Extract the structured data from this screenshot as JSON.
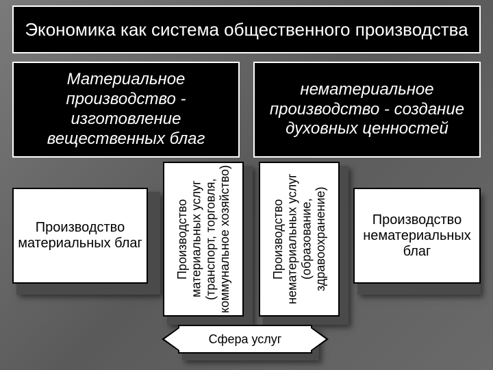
{
  "type": "flowchart",
  "background": {
    "gradient": [
      "#7a7a7a",
      "#5a5a5a",
      "#6a6a6a"
    ]
  },
  "title": {
    "text": "Экономика как система общественного производства",
    "fontsize": 26,
    "bg": "#000000",
    "fg": "#ffffff",
    "border": "#ffffff"
  },
  "branches": {
    "left": {
      "header": "Материальное производство - изготовление вещественных благ",
      "header_style": {
        "fontsize": 24,
        "italic": true,
        "bg": "#000000",
        "fg": "#ffffff"
      },
      "leaf": "Производство материальных благ",
      "vertical": "Производство материальных услуг (транспорт, торговля, коммунальное хозяйство)"
    },
    "right": {
      "header": "нематериальное производство - создание духовных ценностей",
      "header_style": {
        "fontsize": 24,
        "italic": true,
        "bg": "#000000",
        "fg": "#ffffff"
      },
      "leaf": "Производство нематериальных благ",
      "vertical": "Производство нематериальных услуг (образование, здравоохранение)"
    }
  },
  "bottom": {
    "text": "Сфера услуг",
    "fontsize": 18
  },
  "box_style": {
    "small_bg": "#ffffff",
    "small_fg": "#000000",
    "small_border": "#000000",
    "shadow_bg": "#4a4a4a"
  }
}
